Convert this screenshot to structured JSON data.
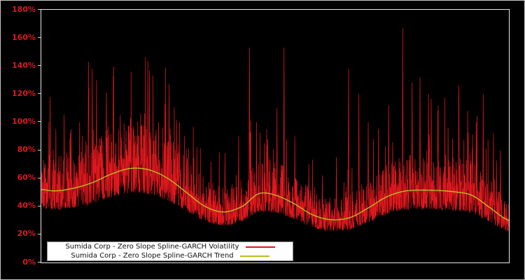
{
  "figure": {
    "background": "#000000",
    "border_color": "#c8c8c8"
  },
  "axis": {
    "ytick_labels": [
      "0%",
      "20%",
      "40%",
      "60%",
      "80%",
      "100%",
      "120%",
      "140%",
      "160%",
      "180%"
    ],
    "ytick_values": [
      0,
      20,
      40,
      60,
      80,
      100,
      120,
      140,
      160,
      180
    ],
    "tick_label_color": "#e0181e",
    "tick_mark_color": "#cfcfcf",
    "frame_color": "#e8e8e8",
    "xtick_labels": []
  },
  "legend": {
    "background": "#ffffff",
    "border_color": "#8a8a8a",
    "entries": [
      {
        "label": "Sumida Corp - Zero Slope Spline-GARCH Volatility",
        "color": "#e0181e"
      },
      {
        "label": "Sumida Corp - Zero Slope Spline-GARCH Trend",
        "color": "#bcbd22"
      }
    ]
  },
  "chart_data": {
    "type": "line",
    "title": "",
    "xlabel": "",
    "ylabel": "",
    "unit": "percent",
    "ylim": [
      0,
      180
    ],
    "x_range": [
      0,
      1
    ],
    "grid": false,
    "legend_position": "lower center",
    "series": [
      {
        "name": "Sumida Corp - Zero Slope Spline-GARCH Volatility",
        "color": "#e0181e",
        "style": "spiky-dense"
      },
      {
        "name": "Sumida Corp - Zero Slope Spline-GARCH Trend",
        "color": "#bcbd22",
        "style": "smooth"
      }
    ],
    "trend_points": {
      "x": [
        0,
        0.03,
        0.07,
        0.11,
        0.15,
        0.19,
        0.23,
        0.27,
        0.31,
        0.35,
        0.39,
        0.43,
        0.465,
        0.5,
        0.54,
        0.58,
        0.62,
        0.66,
        0.7,
        0.74,
        0.78,
        0.83,
        0.88,
        0.92,
        0.955,
        1.0
      ],
      "y": [
        52,
        51,
        53,
        57,
        63,
        67,
        66,
        60,
        50,
        40,
        36,
        40,
        49,
        48,
        42,
        34,
        30.5,
        32,
        39,
        47,
        51,
        51.5,
        50.5,
        48,
        40,
        30
      ]
    },
    "volatility_spikes": [
      [
        0.016,
        100
      ],
      [
        0.019,
        118
      ],
      [
        0.031,
        95
      ],
      [
        0.049,
        105
      ],
      [
        0.064,
        95
      ],
      [
        0.082,
        100
      ],
      [
        0.101,
        143
      ],
      [
        0.109,
        138
      ],
      [
        0.118,
        130
      ],
      [
        0.139,
        110
      ],
      [
        0.154,
        133
      ],
      [
        0.169,
        105
      ],
      [
        0.191,
        100
      ],
      [
        0.213,
        97
      ],
      [
        0.231,
        120
      ],
      [
        0.251,
        100
      ],
      [
        0.273,
        127
      ],
      [
        0.296,
        100
      ],
      [
        0.306,
        90
      ],
      [
        0.333,
        82
      ],
      [
        0.363,
        72
      ],
      [
        0.393,
        78
      ],
      [
        0.422,
        90
      ],
      [
        0.445,
        153
      ],
      [
        0.46,
        100
      ],
      [
        0.482,
        95
      ],
      [
        0.504,
        110
      ],
      [
        0.519,
        153
      ],
      [
        0.542,
        90
      ],
      [
        0.572,
        70
      ],
      [
        0.601,
        62
      ],
      [
        0.631,
        75
      ],
      [
        0.657,
        138
      ],
      [
        0.679,
        120
      ],
      [
        0.699,
        100
      ],
      [
        0.721,
        95
      ],
      [
        0.743,
        112
      ],
      [
        0.773,
        167
      ],
      [
        0.793,
        128
      ],
      [
        0.81,
        132
      ],
      [
        0.828,
        120
      ],
      [
        0.848,
        108
      ],
      [
        0.87,
        96
      ],
      [
        0.893,
        126
      ],
      [
        0.912,
        108
      ],
      [
        0.93,
        100
      ],
      [
        0.945,
        120
      ],
      [
        0.967,
        92
      ],
      [
        0.982,
        80
      ]
    ],
    "volatility_band": {
      "low_ratio": 0.74,
      "high_ratio": 1.16,
      "short_spike_probability": 0.25,
      "tall_spike_probability": 0.045,
      "tall_spike_max_ratio": 2.3,
      "seed": 1234567,
      "points": 2600
    }
  }
}
